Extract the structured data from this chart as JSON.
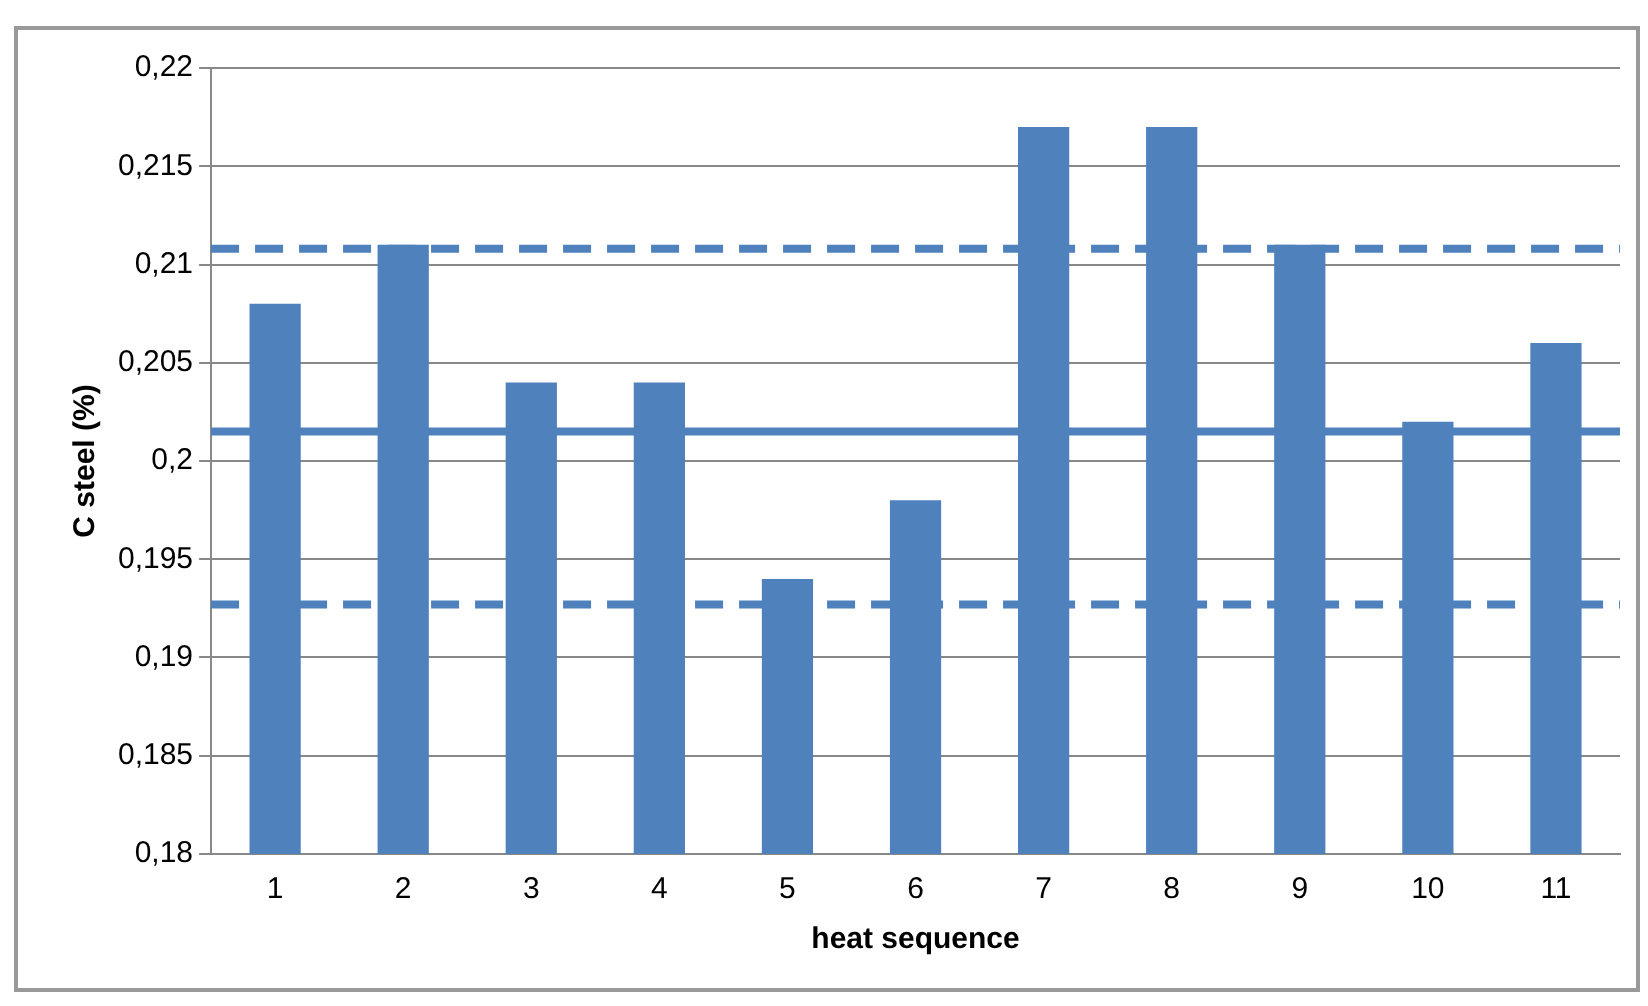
{
  "chart_data": {
    "type": "bar",
    "xlabel": "heat sequence",
    "ylabel": "C steel (%)",
    "categories": [
      "1",
      "2",
      "3",
      "4",
      "5",
      "6",
      "7",
      "8",
      "9",
      "10",
      "11"
    ],
    "values": [
      0.208,
      0.211,
      0.204,
      0.204,
      0.194,
      0.198,
      0.217,
      0.217,
      0.211,
      0.202,
      0.206
    ],
    "color": "#4f81bd",
    "ylim": [
      0.18,
      0.22
    ],
    "yticks": [
      {
        "value": 0.18,
        "label": "0,18"
      },
      {
        "value": 0.185,
        "label": "0,185"
      },
      {
        "value": 0.19,
        "label": "0,19"
      },
      {
        "value": 0.195,
        "label": "0,195"
      },
      {
        "value": 0.2,
        "label": "0,2"
      },
      {
        "value": 0.205,
        "label": "0,205"
      },
      {
        "value": 0.21,
        "label": "0,21"
      },
      {
        "value": 0.215,
        "label": "0,215"
      },
      {
        "value": 0.22,
        "label": "0,22"
      }
    ],
    "grid": "y",
    "legend": false,
    "ref_lines": [
      {
        "axis": "y",
        "value": 0.2108,
        "color": "#4f81bd",
        "line_style": "dashed"
      },
      {
        "axis": "y",
        "value": 0.2015,
        "color": "#4f81bd",
        "line_style": "solid"
      },
      {
        "axis": "y",
        "value": 0.1927,
        "color": "#4f81bd",
        "line_style": "dashed"
      }
    ]
  }
}
